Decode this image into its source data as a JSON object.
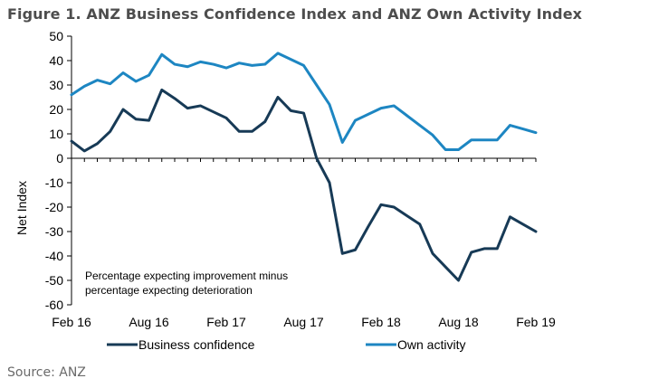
{
  "title": "Figure 1. ANZ Business Confidence Index and ANZ Own Activity Index",
  "source": "Source: ANZ",
  "chart_data": {
    "type": "line",
    "ylabel": "Net Index",
    "ylim": [
      -60,
      50
    ],
    "yticks": [
      50,
      40,
      30,
      20,
      10,
      0,
      -10,
      -20,
      -30,
      -40,
      -50,
      -60
    ],
    "x_tick_labels": [
      "Feb 16",
      "Aug 16",
      "Feb 17",
      "Aug 17",
      "Feb 18",
      "Aug 18",
      "Feb 19"
    ],
    "x_tick_index": [
      0,
      6,
      12,
      18,
      24,
      30,
      36
    ],
    "annotation": [
      "Percentage expecting improvement minus",
      "percentage expecting deterioration"
    ],
    "series": [
      {
        "name": "Business confidence",
        "color": "#173a56",
        "values": [
          7,
          3,
          6,
          11,
          20,
          16,
          15.5,
          28,
          24.5,
          20.5,
          21.5,
          19,
          16.5,
          11,
          11,
          15,
          25,
          19.5,
          18.5,
          0,
          -10,
          -39,
          -37.5,
          -28,
          -19,
          -20,
          -23.5,
          -27,
          -39,
          -44.5,
          -50,
          -38.5,
          -37,
          -37,
          -24,
          -27,
          -30
        ]
      },
      {
        "name": "Own activity",
        "color": "#1d86c2",
        "values": [
          26,
          29.5,
          32,
          30.5,
          35,
          31.5,
          34,
          42.5,
          38.5,
          37.5,
          39.5,
          38.5,
          37,
          39,
          38,
          38.5,
          43,
          40.5,
          38,
          30,
          22,
          6.5,
          15.5,
          18,
          20.5,
          21.5,
          17.5,
          13.5,
          9.5,
          3.5,
          3.5,
          7.5,
          7.5,
          7.5,
          13.5,
          12,
          10.5
        ]
      }
    ]
  }
}
